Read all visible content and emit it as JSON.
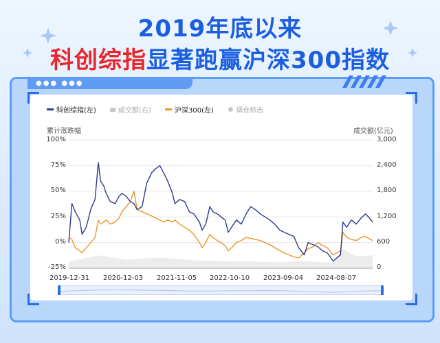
{
  "headline": {
    "line1": "2019年底以来",
    "line2_red": "科创综指",
    "line2_blue": "显著跑赢沪深300指数"
  },
  "chart_data": {
    "type": "line",
    "legend": [
      {
        "name": "科创综指(左)",
        "color": "#2b3a8c"
      },
      {
        "name": "成交额(右)",
        "color": "#c8c8c8"
      },
      {
        "name": "沪深300(左)",
        "color": "#e8962b"
      },
      {
        "name": "调仓标志",
        "color": "#c8c8c8"
      }
    ],
    "ylabel_left": "累计涨跌幅",
    "ylabel_right": "成交额(亿元)",
    "y_ticks_left": [
      "100%",
      "75%",
      "50%",
      "25%",
      "0%",
      "-25%"
    ],
    "y_ticks_right": [
      "3,000",
      "2,400",
      "1,800",
      "1,200",
      "600",
      "0"
    ],
    "ylim_left": [
      -25,
      100
    ],
    "ylim_right": [
      0,
      3000
    ],
    "x_ticks": [
      "2019-12-31",
      "2020-12-03",
      "2021-11-05",
      "2022-10-10",
      "2023-09-04",
      "2024-08-07"
    ],
    "x_range": [
      "2019-12-31",
      "2025-04-15"
    ],
    "series": [
      {
        "name": "科创综指(左)",
        "color": "#2b3a8c",
        "x": [
          "2019-12-31",
          "2020-01-20",
          "2020-02-10",
          "2020-03-10",
          "2020-03-25",
          "2020-04-20",
          "2020-05-20",
          "2020-06-15",
          "2020-07-06",
          "2020-07-20",
          "2020-08-10",
          "2020-08-25",
          "2020-09-20",
          "2020-10-20",
          "2020-11-15",
          "2020-12-03",
          "2020-12-31",
          "2021-01-25",
          "2021-02-18",
          "2021-03-10",
          "2021-04-10",
          "2021-05-10",
          "2021-06-10",
          "2021-07-05",
          "2021-08-01",
          "2021-08-25",
          "2021-09-20",
          "2021-10-20",
          "2021-11-05",
          "2021-12-05",
          "2022-01-05",
          "2022-02-05",
          "2022-03-05",
          "2022-04-10",
          "2022-04-27",
          "2022-05-20",
          "2022-06-15",
          "2022-07-05",
          "2022-08-01",
          "2022-08-25",
          "2022-09-20",
          "2022-10-10",
          "2022-10-31",
          "2022-12-01",
          "2023-01-01",
          "2023-02-01",
          "2023-03-01",
          "2023-04-01",
          "2023-05-01",
          "2023-06-01",
          "2023-07-01",
          "2023-08-01",
          "2023-09-04",
          "2023-10-01",
          "2023-11-01",
          "2023-12-01",
          "2024-01-01",
          "2024-02-05",
          "2024-03-01",
          "2024-04-01",
          "2024-05-01",
          "2024-06-01",
          "2024-07-01",
          "2024-08-07",
          "2024-09-23",
          "2024-10-08",
          "2024-11-01",
          "2024-12-01",
          "2025-01-01",
          "2025-02-01",
          "2025-03-01",
          "2025-03-20",
          "2025-04-15"
        ],
        "values": [
          0,
          38,
          30,
          22,
          8,
          15,
          33,
          42,
          78,
          60,
          55,
          48,
          40,
          38,
          45,
          48,
          45,
          40,
          38,
          32,
          35,
          58,
          68,
          72,
          75,
          68,
          60,
          48,
          38,
          42,
          40,
          30,
          28,
          20,
          12,
          18,
          35,
          30,
          28,
          25,
          22,
          10,
          15,
          22,
          18,
          28,
          35,
          32,
          28,
          25,
          22,
          18,
          12,
          10,
          8,
          6,
          -5,
          -12,
          0,
          -2,
          -4,
          -8,
          -10,
          -18,
          -12,
          20,
          15,
          22,
          18,
          24,
          28,
          25,
          20
        ]
      },
      {
        "name": "沪深300(左)",
        "color": "#e8962b",
        "x": [
          "2019-12-31",
          "2020-01-20",
          "2020-02-10",
          "2020-03-10",
          "2020-03-25",
          "2020-04-20",
          "2020-05-20",
          "2020-06-15",
          "2020-07-06",
          "2020-07-20",
          "2020-08-10",
          "2020-08-25",
          "2020-09-20",
          "2020-10-20",
          "2020-11-15",
          "2020-12-03",
          "2020-12-31",
          "2021-01-25",
          "2021-02-18",
          "2021-03-10",
          "2021-04-10",
          "2021-05-10",
          "2021-06-10",
          "2021-07-05",
          "2021-08-01",
          "2021-08-25",
          "2021-09-20",
          "2021-10-20",
          "2021-11-05",
          "2021-12-05",
          "2022-01-05",
          "2022-02-05",
          "2022-03-05",
          "2022-04-10",
          "2022-04-27",
          "2022-05-20",
          "2022-06-15",
          "2022-07-05",
          "2022-08-01",
          "2022-08-25",
          "2022-09-20",
          "2022-10-10",
          "2022-10-31",
          "2022-12-01",
          "2023-01-01",
          "2023-02-01",
          "2023-03-01",
          "2023-04-01",
          "2023-05-01",
          "2023-06-01",
          "2023-07-01",
          "2023-08-01",
          "2023-09-04",
          "2023-10-01",
          "2023-11-01",
          "2023-12-01",
          "2024-01-01",
          "2024-02-05",
          "2024-03-01",
          "2024-04-01",
          "2024-05-01",
          "2024-06-01",
          "2024-07-01",
          "2024-08-07",
          "2024-09-23",
          "2024-10-08",
          "2024-11-01",
          "2024-12-01",
          "2025-01-01",
          "2025-02-01",
          "2025-03-01",
          "2025-03-20",
          "2025-04-15"
        ],
        "values": [
          5,
          3,
          -5,
          -8,
          -10,
          -5,
          0,
          5,
          22,
          18,
          20,
          22,
          18,
          20,
          24,
          30,
          35,
          40,
          50,
          32,
          30,
          28,
          26,
          24,
          22,
          20,
          22,
          20,
          22,
          18,
          15,
          12,
          8,
          0,
          -5,
          0,
          8,
          5,
          2,
          0,
          -3,
          -8,
          -5,
          0,
          2,
          5,
          4,
          3,
          2,
          0,
          -2,
          -5,
          -8,
          -10,
          -12,
          -14,
          -15,
          -10,
          -6,
          -4,
          0,
          -3,
          -5,
          -12,
          -8,
          10,
          5,
          3,
          2,
          5,
          6,
          4,
          2
        ]
      }
    ],
    "volume": {
      "name": "成交额(右)",
      "color": "#c8c8c8",
      "x": [
        "2019-12-31",
        "2020-07-06",
        "2021-01-01",
        "2021-08-01",
        "2022-04-01",
        "2023-01-01",
        "2023-09-04",
        "2024-02-05",
        "2024-08-07",
        "2024-10-08",
        "2025-01-01",
        "2025-04-15"
      ],
      "values": [
        150,
        300,
        200,
        250,
        180,
        160,
        140,
        170,
        120,
        450,
        280,
        300
      ]
    }
  }
}
